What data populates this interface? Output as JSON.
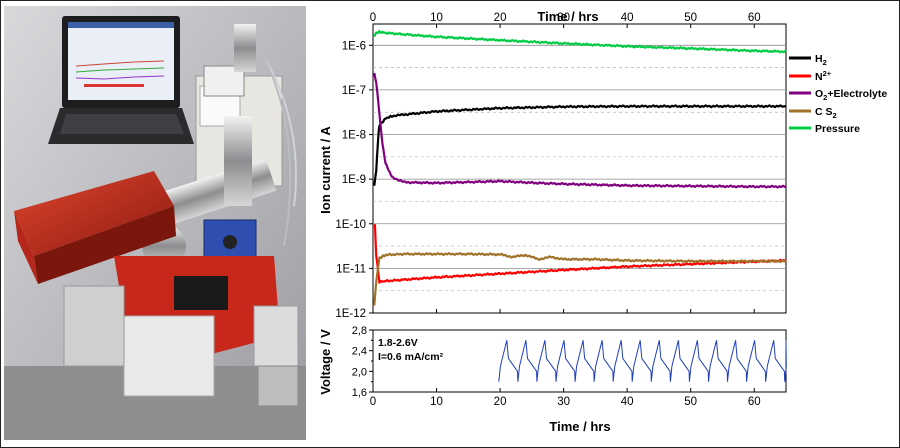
{
  "chart_data": [
    {
      "type": "line",
      "title": "",
      "top_axis_label": "Time / hrs",
      "ylabel": "Ion current / A",
      "xlim": [
        0,
        65
      ],
      "x_ticks": [
        "0",
        "10",
        "20",
        "30",
        "40",
        "50",
        "60"
      ],
      "y_scale": "log",
      "ylim": [
        1e-12,
        3e-06
      ],
      "y_ticks": [
        "1E-6",
        "1E-7",
        "1E-8",
        "1E-9",
        "1E-10",
        "1E-11",
        "1E-12"
      ],
      "grid": "dashed-horizontal",
      "legend_placement": "right",
      "series": [
        {
          "name": "H₂",
          "legend": {
            "base": "H",
            "sub": "2",
            "sup": "",
            "tail": ""
          },
          "color": "#000000",
          "x": [
            0.2,
            0.5,
            0.8,
            1,
            2,
            3,
            5,
            10,
            20,
            30,
            40,
            50,
            60,
            65
          ],
          "y": [
            7e-10,
            1.5e-09,
            8e-09,
            1.6e-08,
            2.3e-08,
            2.6e-08,
            2.8e-08,
            3.3e-08,
            3.9e-08,
            4.2e-08,
            4.3e-08,
            4.3e-08,
            4.3e-08,
            4.3e-08
          ]
        },
        {
          "name": "N²⁺",
          "legend": {
            "base": "N",
            "sub": "",
            "sup": "2+",
            "tail": ""
          },
          "color": "#ff0000",
          "x": [
            0.3,
            0.5,
            1,
            2,
            5,
            10,
            20,
            30,
            40,
            50,
            60,
            65
          ],
          "y": [
            1e-10,
            2e-11,
            5e-12,
            5.2e-12,
            5.6e-12,
            6.3e-12,
            7.6e-12,
            9.2e-12,
            1.1e-11,
            1.25e-11,
            1.42e-11,
            1.5e-11
          ]
        },
        {
          "name": "O₂+Electrolyte",
          "legend": {
            "base": "O",
            "sub": "2",
            "sup": "",
            "tail": "+Electrolyte"
          },
          "color": "#800080",
          "x": [
            0.2,
            0.5,
            1,
            1.5,
            2,
            3,
            5,
            10,
            20,
            25,
            30,
            40,
            50,
            60,
            65
          ],
          "y": [
            2.4e-07,
            1.5e-07,
            3e-08,
            6e-09,
            2.2e-09,
            1.1e-09,
            8.5e-10,
            8.2e-10,
            9e-10,
            8.3e-10,
            7.8e-10,
            7.2e-10,
            7e-10,
            6.8e-10,
            6.8e-10
          ]
        },
        {
          "name": "C S₂",
          "legend": {
            "base": "C S",
            "sub": "2",
            "sup": "",
            "tail": ""
          },
          "color": "#a0722a",
          "x": [
            0.2,
            0.5,
            1,
            2,
            5,
            10,
            15,
            20,
            22,
            24,
            26,
            28,
            30,
            35,
            40,
            50,
            60,
            65
          ],
          "y": [
            1.5e-12,
            5e-12,
            1.7e-11,
            2e-11,
            2.1e-11,
            2.1e-11,
            2.1e-11,
            2.05e-11,
            1.8e-11,
            2e-11,
            1.6e-11,
            1.8e-11,
            1.6e-11,
            1.6e-11,
            1.5e-11,
            1.45e-11,
            1.45e-11,
            1.45e-11
          ]
        },
        {
          "name": "Pressure",
          "legend": {
            "base": "Pressure",
            "sub": "",
            "sup": "",
            "tail": ""
          },
          "color": "#00cc44",
          "x": [
            0.2,
            0.5,
            1,
            2,
            5,
            10,
            20,
            30,
            40,
            50,
            60,
            65
          ],
          "y": [
            1.6e-06,
            1.9e-06,
            2e-06,
            1.9e-06,
            1.75e-06,
            1.55e-06,
            1.3e-06,
            1.1e-06,
            9.5e-07,
            8.5e-07,
            7.5e-07,
            7.2e-07
          ]
        }
      ]
    },
    {
      "type": "line",
      "title": "",
      "xlabel": "Time / hrs",
      "ylabel": "Voltage / V",
      "xlim": [
        0,
        65
      ],
      "x_ticks": [
        "0",
        "10",
        "20",
        "30",
        "40",
        "50",
        "60"
      ],
      "ylim": [
        1.6,
        2.8
      ],
      "y_ticks": [
        "2,8",
        "2,4",
        "2,0",
        "1,6"
      ],
      "y_minor_ticks": [
        2.6,
        2.2,
        1.8
      ],
      "annotation": [
        "1.8-2.6V",
        "I=0.6 mA/cm²"
      ],
      "series": [
        {
          "name": "",
          "color": "#1f3fbf",
          "cycle_period_hrs": 3.0,
          "cycle_start_hrs": 19.8,
          "cycle_end_hrs": 65,
          "v_min": 1.8,
          "v_max": 2.6
        }
      ]
    }
  ]
}
